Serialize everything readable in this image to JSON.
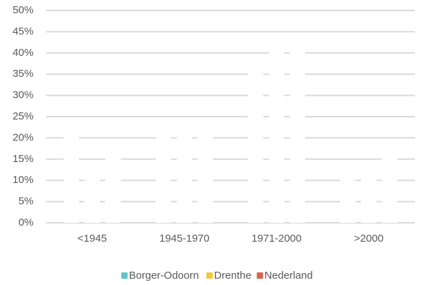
{
  "chart_data": {
    "type": "bar",
    "categories": [
      "<1945",
      "1945-1970",
      "1971-2000",
      ">2000"
    ],
    "series": [
      {
        "name": "Borger-Odoorn",
        "color": "#5fc3cf",
        "values": [
          22,
          23,
          37,
          12
        ]
      },
      {
        "name": "Drenthe",
        "color": "#f2c83c",
        "values": [
          12,
          22,
          42,
          11
        ]
      },
      {
        "name": "Nederland",
        "color": "#d9634c",
        "values": [
          17,
          21,
          41,
          17
        ]
      }
    ],
    "bar_fill": "#ffffff",
    "ylim": [
      0,
      50
    ],
    "yticks": [
      {
        "value": 0,
        "label": "0%"
      },
      {
        "value": 5,
        "label": "5%"
      },
      {
        "value": 10,
        "label": "10%"
      },
      {
        "value": 15,
        "label": "15%"
      },
      {
        "value": 20,
        "label": "20%"
      },
      {
        "value": 25,
        "label": "25%"
      },
      {
        "value": 30,
        "label": "30%"
      },
      {
        "value": 35,
        "label": "35%"
      },
      {
        "value": 40,
        "label": "40%"
      },
      {
        "value": 45,
        "label": "45%"
      },
      {
        "value": 50,
        "label": "50%"
      }
    ],
    "grid": true,
    "legend": "bottom"
  }
}
